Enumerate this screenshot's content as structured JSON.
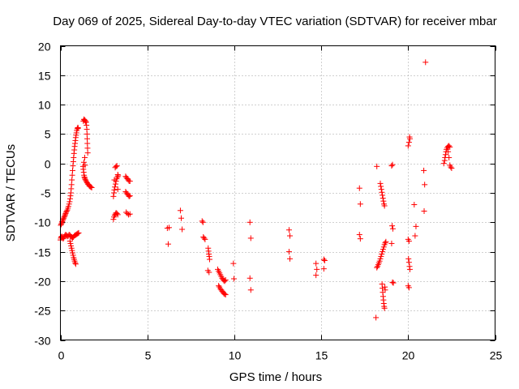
{
  "chart_data": {
    "type": "scatter",
    "title": "Day 069 of 2025, Sidereal Day-to-day VTEC variation (SDTVAR) for receiver mbar",
    "xlabel": "GPS time / hours",
    "ylabel": "SDTVAR / TECUs",
    "xlim": [
      0,
      25
    ],
    "ylim": [
      -30,
      20
    ],
    "xticks": [
      0,
      5,
      10,
      15,
      20,
      25
    ],
    "yticks": [
      -30,
      -25,
      -20,
      -15,
      -10,
      -5,
      0,
      5,
      10,
      15,
      20
    ],
    "grid": true,
    "marker": "+",
    "color": "#ff0000",
    "series": [
      {
        "name": "SDTVAR",
        "points": [
          [
            0.0,
            -13.0
          ],
          [
            0.02,
            -12.7
          ],
          [
            0.05,
            -12.5
          ],
          [
            0.08,
            -12.4
          ],
          [
            0.12,
            -12.6
          ],
          [
            0.16,
            -12.8
          ],
          [
            0.2,
            -12.6
          ],
          [
            0.25,
            -12.3
          ],
          [
            0.3,
            -12.1
          ],
          [
            0.35,
            -12.2
          ],
          [
            0.4,
            -12.4
          ],
          [
            0.45,
            -12.3
          ],
          [
            0.5,
            -12.1
          ],
          [
            0.55,
            -12.2
          ],
          [
            0.6,
            -12.4
          ],
          [
            0.65,
            -12.5
          ],
          [
            0.7,
            -12.6
          ],
          [
            0.75,
            -12.5
          ],
          [
            0.8,
            -12.3
          ],
          [
            0.85,
            -12.2
          ],
          [
            0.9,
            -12.1
          ],
          [
            0.95,
            -12.0
          ],
          [
            1.0,
            -11.9
          ],
          [
            1.05,
            -11.8
          ],
          [
            0.02,
            -10.5
          ],
          [
            0.05,
            -10.3
          ],
          [
            0.08,
            -10.1
          ],
          [
            0.1,
            -9.9
          ],
          [
            0.13,
            -9.7
          ],
          [
            0.16,
            -9.5
          ],
          [
            0.19,
            -9.3
          ],
          [
            0.22,
            -9.1
          ],
          [
            0.25,
            -8.9
          ],
          [
            0.28,
            -8.7
          ],
          [
            0.3,
            -8.5
          ],
          [
            0.33,
            -8.3
          ],
          [
            0.36,
            -8.1
          ],
          [
            0.4,
            -7.9
          ],
          [
            0.43,
            -7.6
          ],
          [
            0.46,
            -7.3
          ],
          [
            0.5,
            -6.9
          ],
          [
            0.53,
            -6.5
          ],
          [
            0.56,
            -6.0
          ],
          [
            0.58,
            -5.5
          ],
          [
            0.6,
            -5.0
          ],
          [
            0.62,
            -4.3
          ],
          [
            0.64,
            -3.6
          ],
          [
            0.66,
            -2.8
          ],
          [
            0.68,
            -2.0
          ],
          [
            0.7,
            -1.2
          ],
          [
            0.72,
            -0.4
          ],
          [
            0.74,
            0.3
          ],
          [
            0.76,
            1.0
          ],
          [
            0.78,
            1.7
          ],
          [
            0.8,
            2.3
          ],
          [
            0.82,
            2.9
          ],
          [
            0.84,
            3.4
          ],
          [
            0.86,
            3.9
          ],
          [
            0.88,
            4.4
          ],
          [
            0.9,
            4.8
          ],
          [
            0.92,
            5.2
          ],
          [
            0.94,
            5.6
          ],
          [
            0.97,
            5.9
          ],
          [
            1.0,
            6.1
          ],
          [
            1.02,
            6.0
          ],
          [
            0.55,
            -13.2
          ],
          [
            0.58,
            -13.6
          ],
          [
            0.61,
            -14.0
          ],
          [
            0.64,
            -14.4
          ],
          [
            0.67,
            -14.8
          ],
          [
            0.7,
            -15.2
          ],
          [
            0.73,
            -15.6
          ],
          [
            0.76,
            -16.0
          ],
          [
            0.79,
            -16.3
          ],
          [
            0.82,
            -16.6
          ],
          [
            0.85,
            -16.9
          ],
          [
            0.88,
            -17.1
          ],
          [
            1.3,
            -0.5
          ],
          [
            1.32,
            -1.0
          ],
          [
            1.34,
            -1.5
          ],
          [
            1.36,
            -2.0
          ],
          [
            1.38,
            -2.3
          ],
          [
            1.4,
            -2.5
          ],
          [
            1.43,
            -2.7
          ],
          [
            1.46,
            -2.9
          ],
          [
            1.5,
            -3.1
          ],
          [
            1.54,
            -3.3
          ],
          [
            1.58,
            -3.5
          ],
          [
            1.62,
            -3.6
          ],
          [
            1.66,
            -3.8
          ],
          [
            1.7,
            -3.9
          ],
          [
            1.75,
            -4.0
          ],
          [
            1.8,
            -4.1
          ],
          [
            1.32,
            7.2
          ],
          [
            1.35,
            7.5
          ],
          [
            1.38,
            7.4
          ],
          [
            1.42,
            7.3
          ],
          [
            1.45,
            7.1
          ],
          [
            1.48,
            7.0
          ],
          [
            1.5,
            6.5
          ],
          [
            1.52,
            5.8
          ],
          [
            1.53,
            5.0
          ],
          [
            1.54,
            4.2
          ],
          [
            1.55,
            3.4
          ],
          [
            1.56,
            2.6
          ],
          [
            1.57,
            1.8
          ],
          [
            1.4,
            1.0
          ],
          [
            1.35,
            0.2
          ],
          [
            1.42,
            -0.3
          ],
          [
            3.05,
            -9.5
          ],
          [
            3.08,
            -9.1
          ],
          [
            3.12,
            -8.8
          ],
          [
            3.16,
            -8.6
          ],
          [
            3.2,
            -8.4
          ],
          [
            3.25,
            -8.5
          ],
          [
            3.3,
            -8.7
          ],
          [
            3.05,
            -5.6
          ],
          [
            3.08,
            -5.0
          ],
          [
            3.1,
            -4.5
          ],
          [
            3.13,
            -4.0
          ],
          [
            3.17,
            -3.5
          ],
          [
            3.2,
            -3.0
          ],
          [
            3.24,
            -2.6
          ],
          [
            3.28,
            -2.3
          ],
          [
            3.32,
            -2.1
          ],
          [
            3.3,
            -1.9
          ],
          [
            3.15,
            -0.7
          ],
          [
            3.2,
            -0.5
          ],
          [
            3.25,
            -0.4
          ],
          [
            3.1,
            -2.8
          ],
          [
            3.3,
            -4.4
          ],
          [
            3.75,
            -2.2
          ],
          [
            3.8,
            -2.4
          ],
          [
            3.85,
            -2.6
          ],
          [
            3.9,
            -2.8
          ],
          [
            3.95,
            -3.0
          ],
          [
            4.0,
            -3.0
          ],
          [
            3.75,
            -4.8
          ],
          [
            3.8,
            -5.0
          ],
          [
            3.85,
            -5.2
          ],
          [
            3.9,
            -5.4
          ],
          [
            3.95,
            -5.6
          ],
          [
            4.0,
            -5.5
          ],
          [
            3.78,
            -8.3
          ],
          [
            3.85,
            -8.5
          ],
          [
            3.92,
            -8.7
          ],
          [
            4.0,
            -8.6
          ],
          [
            6.15,
            -11.0
          ],
          [
            6.25,
            -10.9
          ],
          [
            6.2,
            -13.7
          ],
          [
            6.9,
            -8.0
          ],
          [
            6.95,
            -9.3
          ],
          [
            7.0,
            -11.2
          ],
          [
            8.15,
            -9.8
          ],
          [
            8.2,
            -10.0
          ],
          [
            8.22,
            -12.5
          ],
          [
            8.27,
            -12.7
          ],
          [
            8.32,
            -12.9
          ],
          [
            8.5,
            -14.4
          ],
          [
            8.52,
            -14.9
          ],
          [
            8.54,
            -15.4
          ],
          [
            8.56,
            -15.8
          ],
          [
            8.58,
            -16.3
          ],
          [
            8.48,
            -18.2
          ],
          [
            8.55,
            -18.5
          ],
          [
            9.05,
            -18.0
          ],
          [
            9.1,
            -18.3
          ],
          [
            9.15,
            -18.6
          ],
          [
            9.2,
            -18.9
          ],
          [
            9.25,
            -19.2
          ],
          [
            9.3,
            -19.5
          ],
          [
            9.35,
            -19.7
          ],
          [
            9.4,
            -19.9
          ],
          [
            9.45,
            -20.0
          ],
          [
            9.5,
            -19.8
          ],
          [
            9.1,
            -20.8
          ],
          [
            9.15,
            -21.0
          ],
          [
            9.2,
            -21.3
          ],
          [
            9.25,
            -21.5
          ],
          [
            9.3,
            -21.7
          ],
          [
            9.35,
            -21.9
          ],
          [
            9.4,
            -22.1
          ],
          [
            9.45,
            -22.2
          ],
          [
            9.5,
            -22.3
          ],
          [
            9.95,
            -17.0
          ],
          [
            9.98,
            -19.6
          ],
          [
            10.9,
            -10.0
          ],
          [
            10.95,
            -12.7
          ],
          [
            10.9,
            -19.5
          ],
          [
            10.95,
            -21.5
          ],
          [
            13.15,
            -11.3
          ],
          [
            13.2,
            -12.3
          ],
          [
            13.15,
            -15.0
          ],
          [
            13.2,
            -16.2
          ],
          [
            14.7,
            -17.0
          ],
          [
            14.75,
            -18.0
          ],
          [
            14.7,
            -19.0
          ],
          [
            15.15,
            -16.3
          ],
          [
            15.2,
            -16.5
          ],
          [
            15.15,
            -17.9
          ],
          [
            17.2,
            -4.2
          ],
          [
            17.25,
            -6.9
          ],
          [
            17.2,
            -12.1
          ],
          [
            17.25,
            -12.8
          ],
          [
            18.15,
            -26.2
          ],
          [
            18.2,
            -0.5
          ],
          [
            18.2,
            -17.7
          ],
          [
            18.24,
            -17.5
          ],
          [
            18.28,
            -17.2
          ],
          [
            18.32,
            -16.9
          ],
          [
            18.36,
            -16.6
          ],
          [
            18.4,
            -16.2
          ],
          [
            18.44,
            -15.8
          ],
          [
            18.48,
            -15.4
          ],
          [
            18.52,
            -15.0
          ],
          [
            18.56,
            -14.6
          ],
          [
            18.6,
            -14.2
          ],
          [
            18.64,
            -13.8
          ],
          [
            18.68,
            -13.5
          ],
          [
            18.72,
            -13.3
          ],
          [
            18.4,
            -3.4
          ],
          [
            18.43,
            -3.9
          ],
          [
            18.46,
            -4.4
          ],
          [
            18.49,
            -4.9
          ],
          [
            18.52,
            -5.4
          ],
          [
            18.55,
            -5.9
          ],
          [
            18.58,
            -6.4
          ],
          [
            18.61,
            -6.9
          ],
          [
            18.64,
            -7.2
          ],
          [
            18.5,
            -20.5
          ],
          [
            18.52,
            -21.2
          ],
          [
            18.54,
            -21.9
          ],
          [
            18.56,
            -22.6
          ],
          [
            18.58,
            -23.2
          ],
          [
            18.6,
            -23.8
          ],
          [
            18.62,
            -24.3
          ],
          [
            18.64,
            -24.6
          ],
          [
            18.66,
            -21.0
          ],
          [
            18.68,
            -21.5
          ],
          [
            19.05,
            -0.4
          ],
          [
            19.1,
            -0.2
          ],
          [
            19.08,
            -10.6
          ],
          [
            19.12,
            -11.1
          ],
          [
            19.05,
            -13.6
          ],
          [
            19.1,
            -20.2
          ],
          [
            19.15,
            -20.3
          ],
          [
            20.0,
            -20.8
          ],
          [
            20.05,
            -21.1
          ],
          [
            20.02,
            -16.2
          ],
          [
            20.05,
            -16.8
          ],
          [
            20.08,
            -17.5
          ],
          [
            20.1,
            -18.0
          ],
          [
            20.0,
            -12.9
          ],
          [
            20.05,
            -13.2
          ],
          [
            20.0,
            3.0
          ],
          [
            20.05,
            3.6
          ],
          [
            20.1,
            4.2
          ],
          [
            20.08,
            4.5
          ],
          [
            20.35,
            -7.0
          ],
          [
            20.45,
            -10.7
          ],
          [
            20.4,
            -12.3
          ],
          [
            20.9,
            -1.2
          ],
          [
            20.95,
            -3.6
          ],
          [
            20.92,
            -8.1
          ],
          [
            21.0,
            17.2
          ],
          [
            22.05,
            0.0
          ],
          [
            22.1,
            0.5
          ],
          [
            22.12,
            1.0
          ],
          [
            22.15,
            1.5
          ],
          [
            22.18,
            2.0
          ],
          [
            22.2,
            2.4
          ],
          [
            22.25,
            2.7
          ],
          [
            22.3,
            2.9
          ],
          [
            22.35,
            3.0
          ],
          [
            22.4,
            2.8
          ],
          [
            22.4,
            -0.3
          ],
          [
            22.45,
            -0.6
          ],
          [
            22.5,
            -0.8
          ],
          [
            22.3,
            2.0
          ],
          [
            22.35,
            1.0
          ]
        ]
      }
    ]
  }
}
